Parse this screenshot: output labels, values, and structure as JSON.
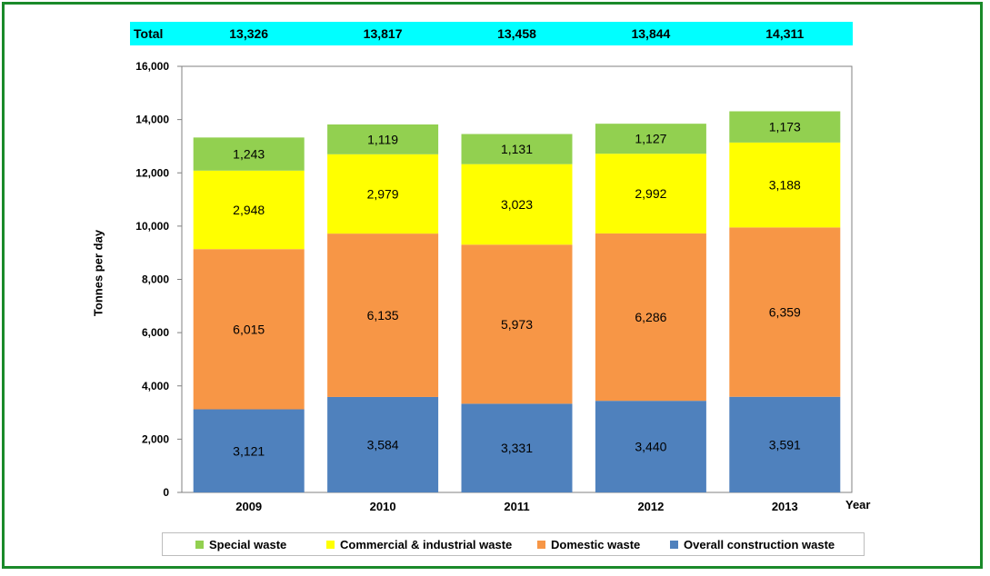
{
  "totals_row": {
    "label": "Total",
    "values": [
      "13,326",
      "13,817",
      "13,458",
      "13,844",
      "14,311"
    ]
  },
  "chart_data": {
    "type": "bar",
    "stacked": true,
    "categories": [
      "2009",
      "2010",
      "2011",
      "2012",
      "2013"
    ],
    "series": [
      {
        "name": "Overall construction waste",
        "values": [
          3121,
          3584,
          3331,
          3440,
          3591
        ],
        "labels": [
          "3,121",
          "3,584",
          "3,331",
          "3,440",
          "3,591"
        ],
        "color": "#4f81bd"
      },
      {
        "name": "Domestic waste",
        "values": [
          6015,
          6135,
          5973,
          6286,
          6359
        ],
        "labels": [
          "6,015",
          "6,135",
          "5,973",
          "6,286",
          "6,359"
        ],
        "color": "#f79646"
      },
      {
        "name": "Commercial & industrial waste",
        "values": [
          2948,
          2979,
          3023,
          2992,
          3188
        ],
        "labels": [
          "2,948",
          "2,979",
          "3,023",
          "2,992",
          "3,188"
        ],
        "color": "#ffff00"
      },
      {
        "name": "Special waste",
        "values": [
          1243,
          1119,
          1131,
          1127,
          1173
        ],
        "labels": [
          "1,243",
          "1,119",
          "1,131",
          "1,127",
          "1,173"
        ],
        "color": "#92d050"
      }
    ],
    "legend_order": [
      "Special waste",
      "Commercial & industrial waste",
      "Domestic waste",
      "Overall construction waste"
    ],
    "ylabel": "Tonnes per day",
    "xlabel": "Year",
    "ylim": [
      0,
      16000
    ],
    "yticks": [
      0,
      2000,
      4000,
      6000,
      8000,
      10000,
      12000,
      14000,
      16000
    ],
    "ytick_labels": [
      "0",
      "2,000",
      "4,000",
      "6,000",
      "8,000",
      "10,000",
      "12,000",
      "14,000",
      "16,000"
    ],
    "grid": false,
    "legend_position": "bottom"
  },
  "colors": {
    "frame_border": "#1a8a2a",
    "total_band": "#00ffff"
  }
}
